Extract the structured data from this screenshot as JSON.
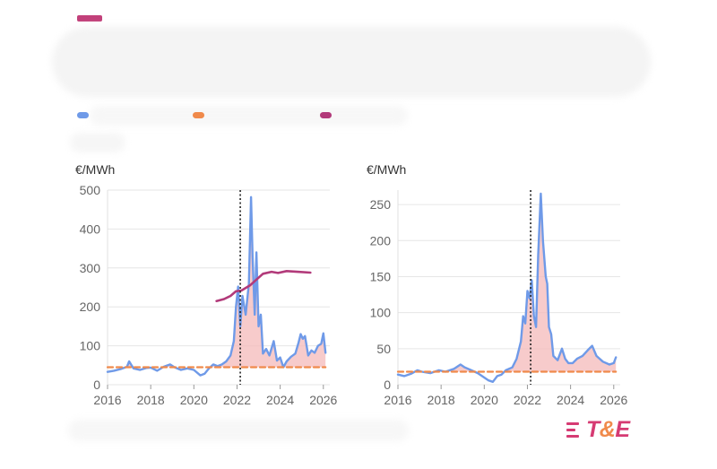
{
  "header": {
    "accent_color": "#c2407a"
  },
  "legend": [
    {
      "icon": "legend-swatch-blue",
      "color": "#6f9ae8"
    },
    {
      "icon": "legend-swatch-orange",
      "color": "#f08a4b"
    },
    {
      "icon": "legend-swatch-magenta",
      "color": "#b23a7a"
    }
  ],
  "logo": {
    "text_t": "T",
    "text_amp": "&",
    "text_e": "E"
  },
  "chart_data": [
    {
      "type": "line",
      "unit_label": "€/MWh",
      "xlim": [
        2016,
        2026.3
      ],
      "ylim": [
        0,
        500
      ],
      "x_ticks": [
        2016,
        2018,
        2020,
        2022,
        2024,
        2026
      ],
      "y_ticks": [
        0,
        100,
        200,
        300,
        400,
        500
      ],
      "vline_x": 2022.15,
      "grid": true,
      "series": [
        {
          "style": "blue-line",
          "color": "#6f9ae8",
          "points": [
            [
              2016.0,
              33
            ],
            [
              2016.3,
              36
            ],
            [
              2016.6,
              40
            ],
            [
              2016.9,
              46
            ],
            [
              2017.0,
              60
            ],
            [
              2017.2,
              42
            ],
            [
              2017.5,
              38
            ],
            [
              2017.8,
              43
            ],
            [
              2018.0,
              44
            ],
            [
              2018.3,
              36
            ],
            [
              2018.6,
              46
            ],
            [
              2018.9,
              52
            ],
            [
              2019.1,
              45
            ],
            [
              2019.4,
              38
            ],
            [
              2019.7,
              42
            ],
            [
              2020.0,
              38
            ],
            [
              2020.3,
              24
            ],
            [
              2020.5,
              28
            ],
            [
              2020.7,
              42
            ],
            [
              2020.9,
              52
            ],
            [
              2021.1,
              48
            ],
            [
              2021.3,
              52
            ],
            [
              2021.5,
              60
            ],
            [
              2021.7,
              75
            ],
            [
              2021.85,
              112
            ],
            [
              2021.95,
              200
            ],
            [
              2022.05,
              252
            ],
            [
              2022.15,
              150
            ],
            [
              2022.25,
              228
            ],
            [
              2022.4,
              180
            ],
            [
              2022.55,
              260
            ],
            [
              2022.65,
              482
            ],
            [
              2022.72,
              330
            ],
            [
              2022.82,
              180
            ],
            [
              2022.9,
              340
            ],
            [
              2023.0,
              150
            ],
            [
              2023.1,
              180
            ],
            [
              2023.2,
              80
            ],
            [
              2023.35,
              92
            ],
            [
              2023.5,
              75
            ],
            [
              2023.7,
              112
            ],
            [
              2023.85,
              62
            ],
            [
              2024.0,
              70
            ],
            [
              2024.15,
              45
            ],
            [
              2024.3,
              60
            ],
            [
              2024.5,
              72
            ],
            [
              2024.7,
              80
            ],
            [
              2024.85,
              108
            ],
            [
              2024.95,
              130
            ],
            [
              2025.05,
              118
            ],
            [
              2025.15,
              125
            ],
            [
              2025.3,
              75
            ],
            [
              2025.45,
              88
            ],
            [
              2025.6,
              82
            ],
            [
              2025.75,
              100
            ],
            [
              2025.9,
              105
            ],
            [
              2026.0,
              132
            ],
            [
              2026.1,
              82
            ]
          ]
        },
        {
          "style": "orange-dashed",
          "color": "#f08a4b",
          "points": [
            [
              2016.0,
              45
            ],
            [
              2026.1,
              45
            ]
          ]
        },
        {
          "style": "magenta-line",
          "color": "#b23a7a",
          "points": [
            [
              2021.05,
              215
            ],
            [
              2021.4,
              220
            ],
            [
              2021.7,
              228
            ],
            [
              2021.95,
              240
            ],
            [
              2022.2,
              242
            ],
            [
              2022.6,
              255
            ],
            [
              2022.9,
              270
            ],
            [
              2023.2,
              285
            ],
            [
              2023.6,
              290
            ],
            [
              2023.9,
              287
            ],
            [
              2024.3,
              292
            ],
            [
              2024.8,
              290
            ],
            [
              2025.4,
              288
            ]
          ]
        }
      ]
    },
    {
      "type": "line",
      "unit_label": "€/MWh",
      "xlim": [
        2016,
        2026.3
      ],
      "ylim": [
        0,
        270
      ],
      "x_ticks": [
        2016,
        2018,
        2020,
        2022,
        2024,
        2026
      ],
      "y_ticks": [
        0,
        50,
        100,
        150,
        200,
        250
      ],
      "vline_x": 2022.15,
      "grid": true,
      "series": [
        {
          "style": "blue-line",
          "color": "#6f9ae8",
          "points": [
            [
              2016.0,
              14
            ],
            [
              2016.3,
              12
            ],
            [
              2016.6,
              15
            ],
            [
              2016.9,
              20
            ],
            [
              2017.1,
              18
            ],
            [
              2017.5,
              16
            ],
            [
              2017.9,
              20
            ],
            [
              2018.2,
              18
            ],
            [
              2018.6,
              22
            ],
            [
              2018.9,
              28
            ],
            [
              2019.1,
              24
            ],
            [
              2019.4,
              20
            ],
            [
              2019.7,
              16
            ],
            [
              2020.0,
              10
            ],
            [
              2020.2,
              6
            ],
            [
              2020.4,
              4
            ],
            [
              2020.6,
              12
            ],
            [
              2020.8,
              14
            ],
            [
              2021.0,
              20
            ],
            [
              2021.3,
              24
            ],
            [
              2021.5,
              36
            ],
            [
              2021.7,
              60
            ],
            [
              2021.8,
              95
            ],
            [
              2021.9,
              85
            ],
            [
              2022.0,
              130
            ],
            [
              2022.1,
              120
            ],
            [
              2022.2,
              145
            ],
            [
              2022.3,
              95
            ],
            [
              2022.4,
              80
            ],
            [
              2022.5,
              180
            ],
            [
              2022.62,
              265
            ],
            [
              2022.72,
              200
            ],
            [
              2022.85,
              150
            ],
            [
              2022.92,
              140
            ],
            [
              2023.0,
              80
            ],
            [
              2023.1,
              70
            ],
            [
              2023.2,
              40
            ],
            [
              2023.4,
              34
            ],
            [
              2023.6,
              50
            ],
            [
              2023.75,
              36
            ],
            [
              2023.9,
              30
            ],
            [
              2024.1,
              30
            ],
            [
              2024.3,
              36
            ],
            [
              2024.55,
              40
            ],
            [
              2024.8,
              48
            ],
            [
              2025.0,
              54
            ],
            [
              2025.2,
              40
            ],
            [
              2025.5,
              32
            ],
            [
              2025.8,
              28
            ],
            [
              2026.0,
              30
            ],
            [
              2026.1,
              38
            ]
          ]
        },
        {
          "style": "orange-dashed",
          "color": "#f08a4b",
          "points": [
            [
              2016.0,
              18
            ],
            [
              2026.1,
              18
            ]
          ]
        }
      ]
    }
  ]
}
